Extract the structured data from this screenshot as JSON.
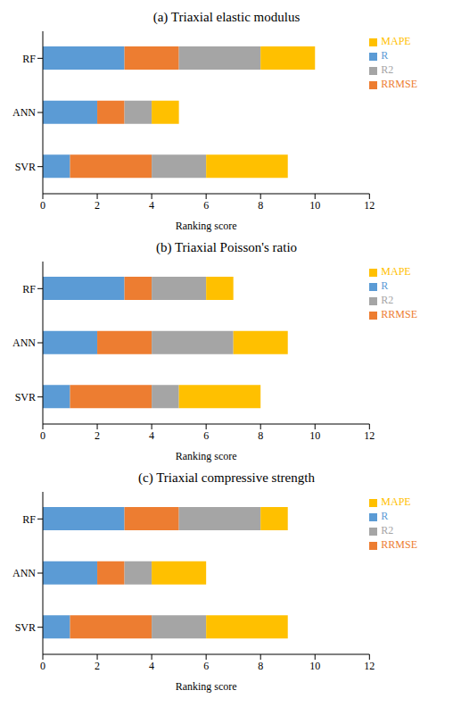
{
  "chart_data": [
    {
      "type": "bar",
      "title": "(a) Triaxial elastic modulus",
      "x_label": "Ranking score",
      "orientation": "horizontal",
      "stacked": true,
      "legend": "upper right",
      "categories": [
        "RF",
        "ANN",
        "SVR"
      ],
      "series": [
        {
          "name": "R",
          "color": "#5b9bd5",
          "values": [
            3,
            2,
            1
          ]
        },
        {
          "name": "RRMSE",
          "color": "#ed7d31",
          "values": [
            2,
            1,
            3
          ]
        },
        {
          "name": "R2",
          "color": "#a5a5a5",
          "values": [
            3,
            1,
            2
          ]
        },
        {
          "name": "MAPE",
          "color": "#ffc000",
          "values": [
            2,
            1,
            3
          ]
        }
      ],
      "xlim": [
        0,
        12
      ],
      "xticks": [
        0,
        2,
        4,
        6,
        8,
        10,
        12
      ]
    },
    {
      "type": "bar",
      "title": "(b) Triaxial Poisson's ratio",
      "x_label": "Ranking score",
      "orientation": "horizontal",
      "stacked": true,
      "legend": "upper right",
      "categories": [
        "RF",
        "ANN",
        "SVR"
      ],
      "series": [
        {
          "name": "R",
          "color": "#5b9bd5",
          "values": [
            3,
            2,
            1
          ]
        },
        {
          "name": "RRMSE",
          "color": "#ed7d31",
          "values": [
            1,
            2,
            3
          ]
        },
        {
          "name": "R2",
          "color": "#a5a5a5",
          "values": [
            2,
            3,
            1
          ]
        },
        {
          "name": "MAPE",
          "color": "#ffc000",
          "values": [
            1,
            2,
            3
          ]
        }
      ],
      "xlim": [
        0,
        12
      ],
      "xticks": [
        0,
        2,
        4,
        6,
        8,
        10,
        12
      ]
    },
    {
      "type": "bar",
      "title": "(c) Triaxial compressive strength",
      "x_label": "Ranking score",
      "orientation": "horizontal",
      "stacked": true,
      "legend": "upper right",
      "categories": [
        "RF",
        "ANN",
        "SVR"
      ],
      "series": [
        {
          "name": "R",
          "color": "#5b9bd5",
          "values": [
            3,
            2,
            1
          ]
        },
        {
          "name": "RRMSE",
          "color": "#ed7d31",
          "values": [
            2,
            1,
            3
          ]
        },
        {
          "name": "R2",
          "color": "#a5a5a5",
          "values": [
            3,
            1,
            2
          ]
        },
        {
          "name": "MAPE",
          "color": "#ffc000",
          "values": [
            1,
            2,
            3
          ]
        }
      ],
      "xlim": [
        0,
        12
      ],
      "xticks": [
        0,
        2,
        4,
        6,
        8,
        10,
        12
      ]
    }
  ]
}
